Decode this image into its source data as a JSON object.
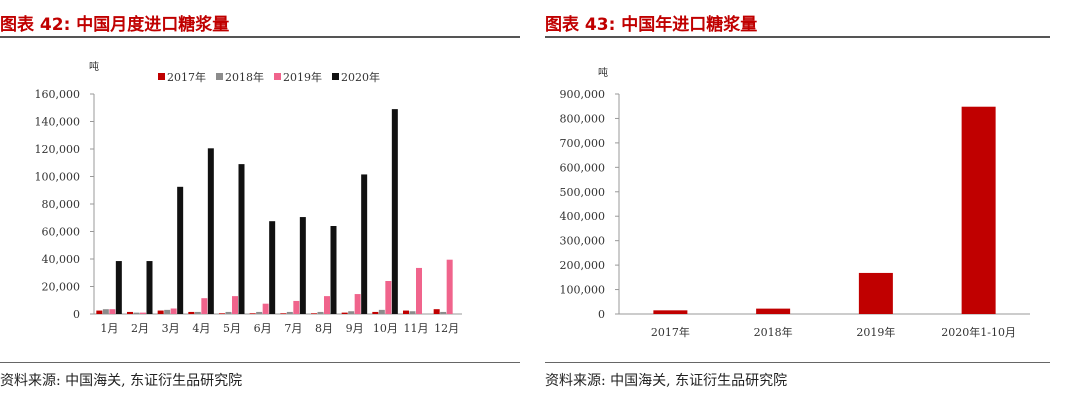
{
  "left": {
    "title": "图表 42:  中国月度进口糖浆量",
    "source": "资料来源:  中国海关,  东证衍生品研究院"
  },
  "right": {
    "title": "图表 43:  中国年进口糖浆量",
    "source": "资料来源:  中国海关,  东证衍生品研究院"
  },
  "chart_data": [
    {
      "type": "bar",
      "unit_label": "吨",
      "ylim": [
        0,
        160000
      ],
      "yticks": [
        "0",
        "20,000",
        "40,000",
        "60,000",
        "80,000",
        "100,000",
        "120,000",
        "140,000",
        "160,000"
      ],
      "categories": [
        "1月",
        "2月",
        "3月",
        "4月",
        "5月",
        "6月",
        "7月",
        "8月",
        "9月",
        "10月",
        "11月",
        "12月"
      ],
      "legend_position": "top",
      "series": [
        {
          "name": "2017年",
          "color": "#c00000",
          "values": [
            2500,
            1500,
            2500,
            1500,
            500,
            500,
            500,
            500,
            1000,
            1500,
            2500,
            3500
          ]
        },
        {
          "name": "2018年",
          "color": "#8c8c8c",
          "values": [
            3500,
            1000,
            3000,
            1500,
            1500,
            1500,
            1500,
            1500,
            2000,
            3000,
            2000,
            1500
          ]
        },
        {
          "name": "2019年",
          "color": "#f0648c",
          "values": [
            3500,
            1000,
            4000,
            11500,
            13000,
            7500,
            9500,
            13000,
            14500,
            24000,
            33500,
            39500
          ]
        },
        {
          "name": "2020年",
          "color": "#111111",
          "values": [
            38500,
            38500,
            92500,
            120500,
            109000,
            67500,
            70500,
            64000,
            101500,
            149000,
            null,
            null
          ]
        }
      ]
    },
    {
      "type": "bar",
      "unit_label": "吨",
      "ylim": [
        0,
        900000
      ],
      "yticks": [
        "0",
        "100,000",
        "200,000",
        "300,000",
        "400,000",
        "500,000",
        "600,000",
        "700,000",
        "800,000",
        "900,000"
      ],
      "categories": [
        "2017年",
        "2018年",
        "2019年",
        "2020年1-10月"
      ],
      "series": [
        {
          "color": "#c00000",
          "values": [
            15000,
            22000,
            168000,
            848000
          ]
        }
      ]
    }
  ]
}
